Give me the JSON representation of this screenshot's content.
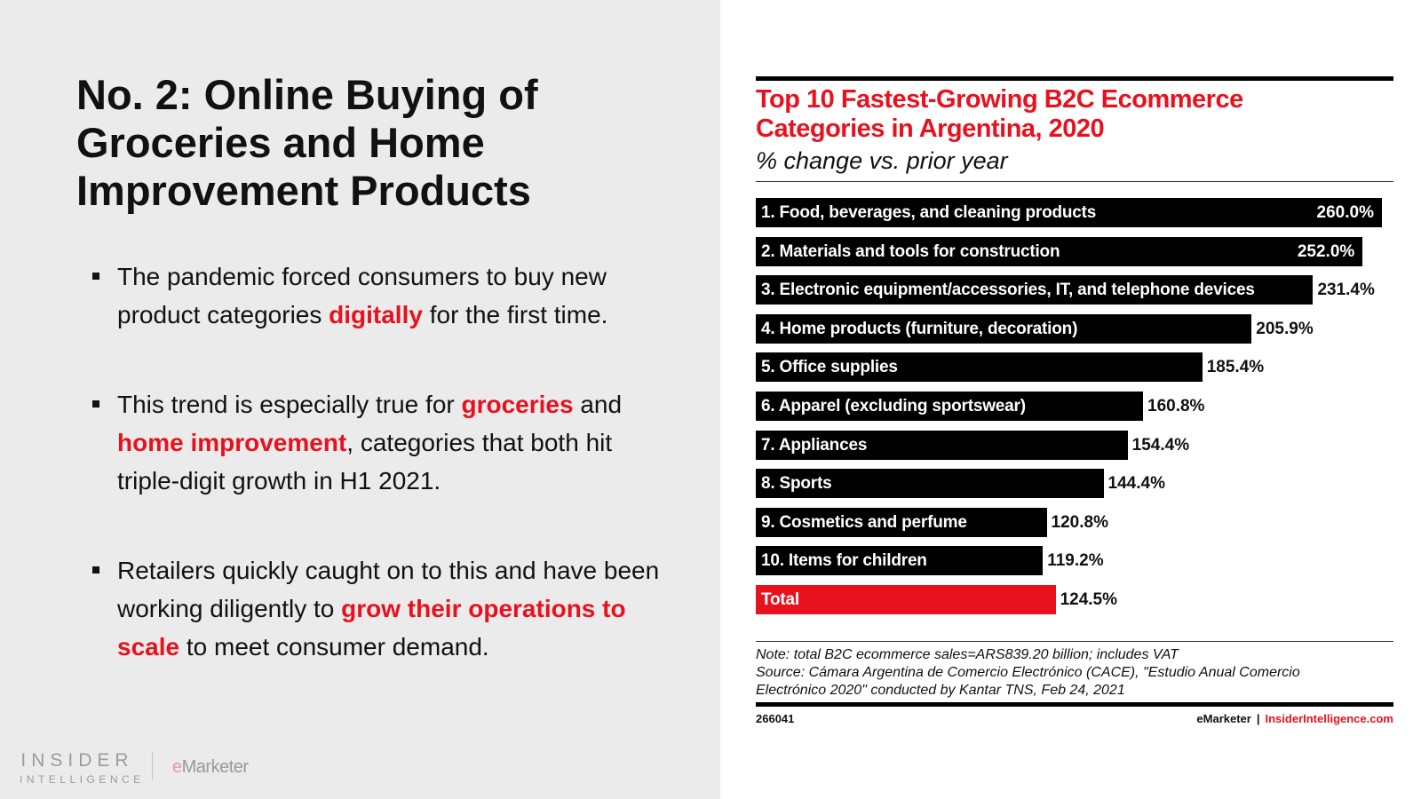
{
  "slide": {
    "title_lines": [
      "No. 2: Online Buying of",
      "Groceries and Home",
      "Improvement Products"
    ],
    "bullets": [
      {
        "segments": [
          {
            "text": "The pandemic forced consumers to buy new product categories ",
            "highlight": false
          },
          {
            "text": "digitally",
            "highlight": true
          },
          {
            "text": " for the first time.",
            "highlight": false
          }
        ]
      },
      {
        "segments": [
          {
            "text": "This trend is especially true for ",
            "highlight": false
          },
          {
            "text": "groceries",
            "highlight": true
          },
          {
            "text": " and ",
            "highlight": false
          },
          {
            "text": "home improvement",
            "highlight": true
          },
          {
            "text": ", categories that both hit triple-digit growth in H1 2021.",
            "highlight": false
          }
        ]
      },
      {
        "segments": [
          {
            "text": "Retailers quickly caught on to this and have been working diligently to ",
            "highlight": false
          },
          {
            "text": "grow their operations to scale",
            "highlight": true
          },
          {
            "text": " to meet consumer demand.",
            "highlight": false
          }
        ]
      }
    ],
    "footer": {
      "insider_line1": "INSIDER",
      "insider_line2": "INTELLIGENCE",
      "emarketer_e": "e",
      "emarketer_rest": "Marketer"
    }
  },
  "colors": {
    "accent": "#e8111e",
    "bar": "#000000",
    "panel_bg": "#ebebeb"
  },
  "chart_data": {
    "type": "bar",
    "orientation": "horizontal",
    "title": "Top 10 Fastest-Growing B2C Ecommerce Categories in Argentina, 2020",
    "title_lines": [
      "Top 10 Fastest-Growing B2C Ecommerce",
      "Categories in Argentina, 2020"
    ],
    "subtitle": "% change vs. prior year",
    "xlabel": "",
    "ylabel": "",
    "xlim": [
      0,
      260
    ],
    "grid": false,
    "legend": "none",
    "categories": [
      "1. Food, beverages, and cleaning products",
      "2. Materials and tools for construction",
      "3. Electronic equipment/accessories, IT, and telephone devices",
      "4. Home products (furniture, decoration)",
      "5. Office supplies",
      "6. Apparel (excluding sportswear)",
      "7. Appliances",
      "8. Sports",
      "9. Cosmetics and perfume",
      "10. Items for children",
      "Total"
    ],
    "values": [
      260.0,
      252.0,
      231.4,
      205.9,
      185.4,
      160.8,
      154.4,
      144.4,
      120.8,
      119.2,
      124.5
    ],
    "value_labels": [
      "260.0%",
      "252.0%",
      "231.4%",
      "205.9%",
      "185.4%",
      "160.8%",
      "154.4%",
      "144.4%",
      "120.8%",
      "119.2%",
      "124.5%"
    ],
    "highlight_category": "Total",
    "note": "Note: total B2C ecommerce sales=ARS839.20 billion; includes VAT",
    "source_lines": [
      "Source: Cámara Argentina de Comercio Electrónico (CACE), \"Estudio Anual Comercio",
      "Electrónico 2020\" conducted by Kantar TNS, Feb 24, 2021"
    ],
    "chart_id": "266041",
    "credit_brand": "eMarketer",
    "credit_separator": "|",
    "credit_site": "InsiderIntelligence.com"
  }
}
